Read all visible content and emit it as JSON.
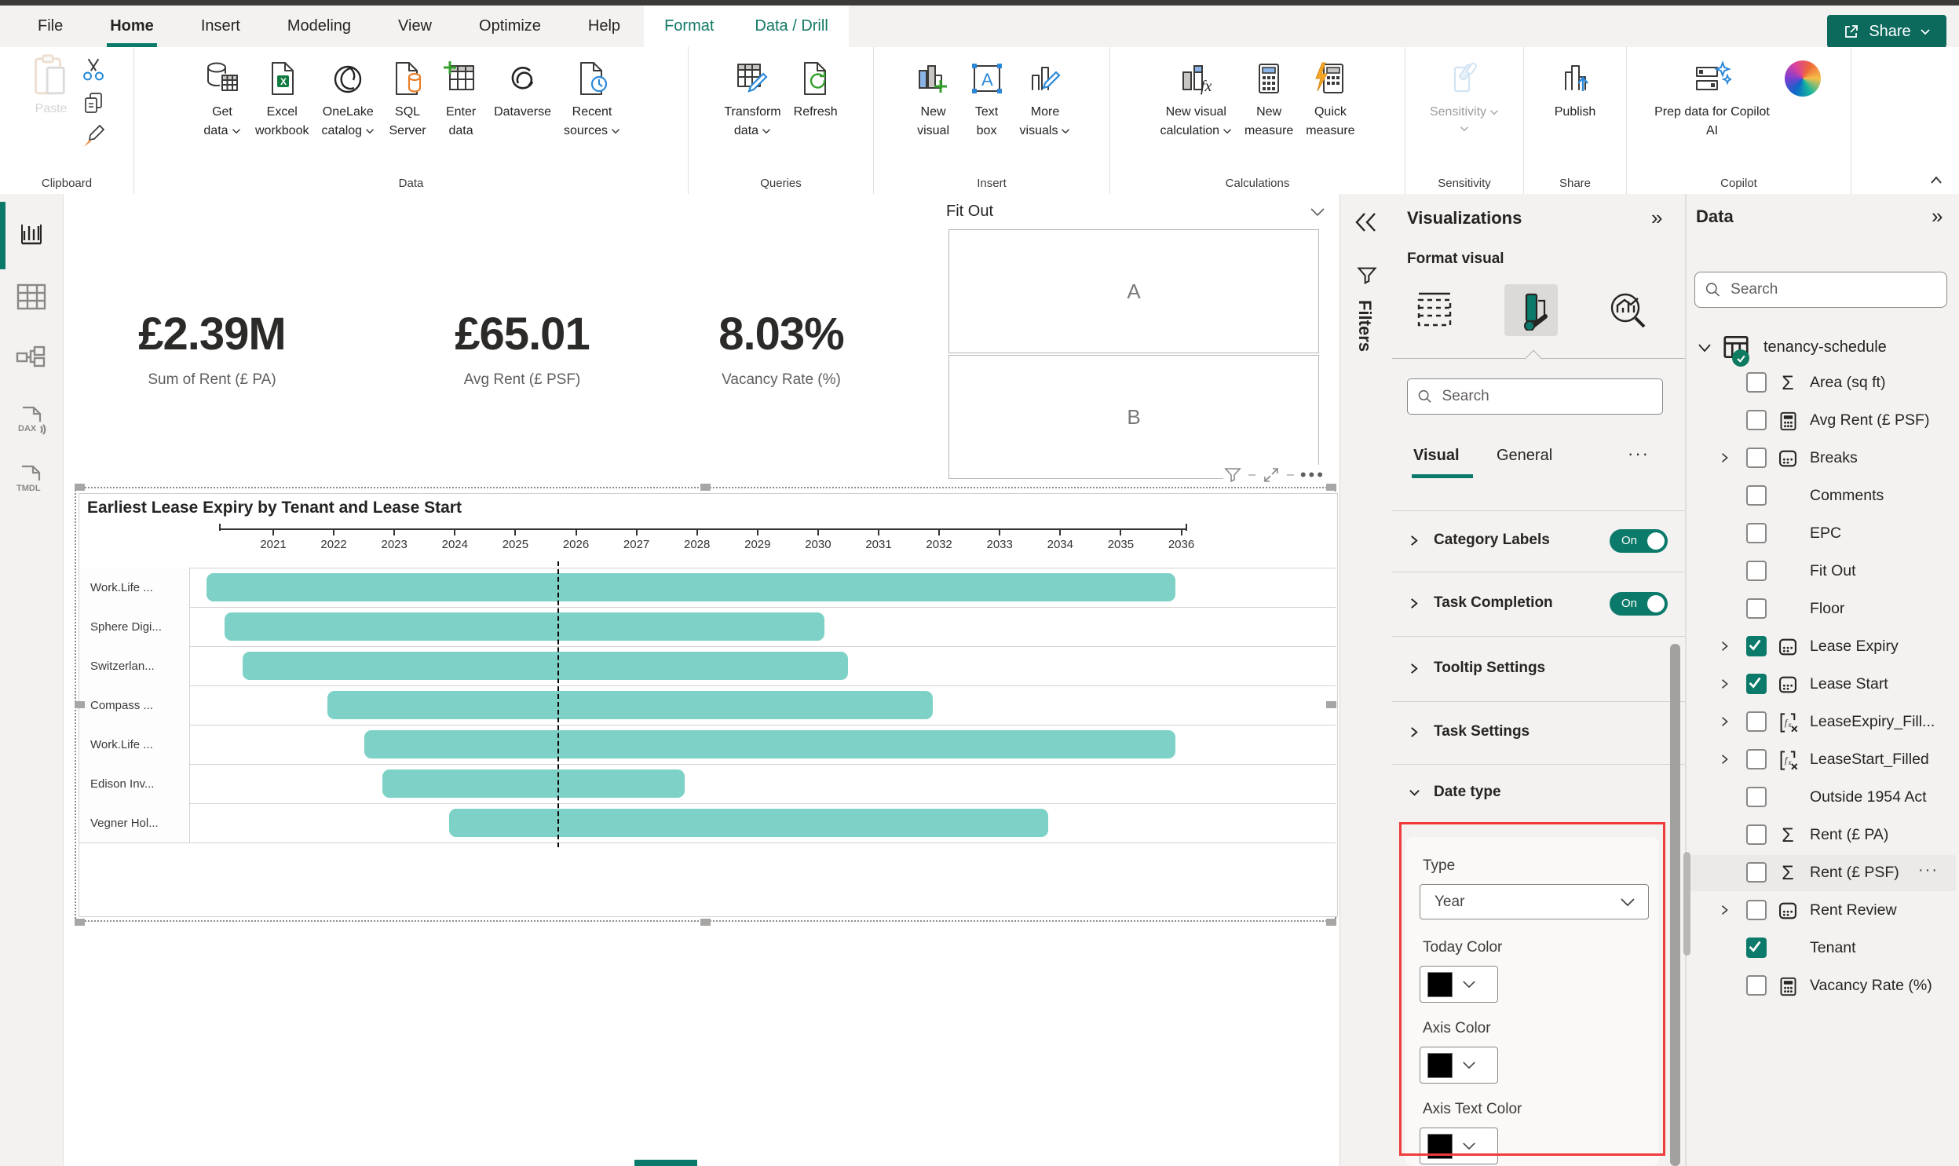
{
  "menu": {
    "items": [
      {
        "label": "File"
      },
      {
        "label": "Home",
        "active": true
      },
      {
        "label": "Insert"
      },
      {
        "label": "Modeling"
      },
      {
        "label": "View"
      },
      {
        "label": "Optimize"
      },
      {
        "label": "Help"
      }
    ],
    "contextual_tabs": [
      {
        "label": "Format"
      },
      {
        "label": "Data / Drill"
      }
    ],
    "share_label": "Share"
  },
  "ribbon": {
    "groups": [
      {
        "label": "Clipboard",
        "buttons": [
          {
            "l1": "Paste",
            "l2": "",
            "icon": "paste",
            "disabled": true
          }
        ]
      },
      {
        "label": "Data",
        "buttons": [
          {
            "l1": "Get",
            "l2": "data",
            "icon": "getdata",
            "dd": true
          },
          {
            "l1": "Excel",
            "l2": "workbook",
            "icon": "excel"
          },
          {
            "l1": "OneLake",
            "l2": "catalog",
            "icon": "onelake",
            "dd": true
          },
          {
            "l1": "SQL",
            "l2": "Server",
            "icon": "sql"
          },
          {
            "l1": "Enter",
            "l2": "data",
            "icon": "enterdata"
          },
          {
            "l1": "Dataverse",
            "l2": "",
            "icon": "dataverse"
          },
          {
            "l1": "Recent",
            "l2": "sources",
            "icon": "recent",
            "dd": true
          }
        ]
      },
      {
        "label": "Queries",
        "buttons": [
          {
            "l1": "Transform",
            "l2": "data",
            "icon": "transform",
            "dd": true
          },
          {
            "l1": "Refresh",
            "l2": "",
            "icon": "refresh"
          }
        ]
      },
      {
        "label": "Insert",
        "buttons": [
          {
            "l1": "New",
            "l2": "visual",
            "icon": "newvisual"
          },
          {
            "l1": "Text",
            "l2": "box",
            "icon": "textbox"
          },
          {
            "l1": "More",
            "l2": "visuals",
            "icon": "morevisuals",
            "dd": true
          }
        ]
      },
      {
        "label": "Calculations",
        "buttons": [
          {
            "l1": "New visual",
            "l2": "calculation",
            "icon": "nvcalc",
            "dd": true
          },
          {
            "l1": "New",
            "l2": "measure",
            "icon": "newmeasure"
          },
          {
            "l1": "Quick",
            "l2": "measure",
            "icon": "quickmeasure"
          }
        ]
      },
      {
        "label": "Sensitivity",
        "buttons": [
          {
            "l1": "Sensitivity",
            "l2": "",
            "icon": "sensitivity",
            "disabled": true,
            "dd": true
          }
        ]
      },
      {
        "label": "Share",
        "buttons": [
          {
            "l1": "Publish",
            "l2": "",
            "icon": "publish"
          }
        ]
      },
      {
        "label": "Copilot",
        "buttons": [
          {
            "l1": "Prep data for Copilot",
            "l2": "AI",
            "icon": "prepdata"
          },
          {
            "l1": "",
            "l2": "",
            "icon": "copilotlogo",
            "icon_only": true
          }
        ]
      }
    ]
  },
  "left_rail": {
    "items": [
      {
        "name": "report-view",
        "active": true
      },
      {
        "name": "table-view"
      },
      {
        "name": "model-view"
      },
      {
        "name": "dax-query-view"
      },
      {
        "name": "tmdl-view"
      }
    ]
  },
  "canvas": {
    "kpis": [
      {
        "value": "£2.39M",
        "label": "Sum of Rent (£ PA)"
      },
      {
        "value": "£65.01",
        "label": "Avg Rent (£ PSF)"
      },
      {
        "value": "8.03%",
        "label": "Vacancy Rate (%)"
      }
    ],
    "fit_out": {
      "title": "Fit Out",
      "options": [
        "A",
        "B"
      ]
    }
  },
  "chart_data": {
    "type": "gantt",
    "title": "Earliest Lease Expiry by Tenant and Lease Start",
    "categories": [
      "Work.Life ...",
      "Sphere Digi...",
      "Switzerlan...",
      "Compass ...",
      "Work.Life ...",
      "Edison Inv...",
      "Vegner Hol..."
    ],
    "bars": [
      {
        "start": 2019.9,
        "end": 2035.9
      },
      {
        "start": 2020.2,
        "end": 2030.1
      },
      {
        "start": 2020.5,
        "end": 2030.5
      },
      {
        "start": 2021.9,
        "end": 2031.9
      },
      {
        "start": 2022.5,
        "end": 2035.9
      },
      {
        "start": 2022.8,
        "end": 2027.8
      },
      {
        "start": 2023.9,
        "end": 2033.8
      }
    ],
    "x_ticks": [
      2021,
      2022,
      2023,
      2024,
      2025,
      2026,
      2027,
      2028,
      2029,
      2030,
      2031,
      2032,
      2033,
      2034,
      2035,
      2036
    ],
    "x_range": [
      2020.1,
      2036.1
    ],
    "today": 2025.7,
    "bar_color": "#7dd1c6",
    "axis_color": "#333333",
    "today_line_color": "#000000",
    "legend": "none",
    "grid": "horizontal"
  },
  "filters_rail": {
    "label": "Filters"
  },
  "visualizations": {
    "title": "Visualizations",
    "subtitle": "Format visual",
    "search_placeholder": "Search",
    "tabs": [
      {
        "label": "Visual",
        "active": true
      },
      {
        "label": "General"
      }
    ],
    "more_tabs": "···",
    "sections": [
      {
        "label": "Category Labels",
        "toggle": "On"
      },
      {
        "label": "Task Completion",
        "toggle": "On"
      },
      {
        "label": "Tooltip Settings"
      },
      {
        "label": "Task Settings"
      },
      {
        "label": "Date type",
        "expanded": true
      }
    ],
    "date_type": {
      "type_label": "Type",
      "type_value": "Year",
      "today_color_label": "Today Color",
      "axis_color_label": "Axis Color",
      "axis_text_color_label": "Axis Text Color",
      "swatch_color": "#000000"
    },
    "highlight_color": "#ef3b3b"
  },
  "data_panel": {
    "title": "Data",
    "search_placeholder": "Search",
    "table_name": "tenancy-schedule",
    "fields": [
      {
        "name": "Area (sq ft)",
        "icon": "sigma"
      },
      {
        "name": "Avg Rent (£ PSF)",
        "icon": "calc"
      },
      {
        "name": "Breaks",
        "icon": "date",
        "expandable": true
      },
      {
        "name": "Comments"
      },
      {
        "name": "EPC"
      },
      {
        "name": "Fit Out"
      },
      {
        "name": "Floor"
      },
      {
        "name": "Lease Expiry",
        "icon": "date",
        "expandable": true,
        "checked": true
      },
      {
        "name": "Lease Start",
        "icon": "date",
        "expandable": true,
        "checked": true
      },
      {
        "name": "LeaseExpiry_Fill...",
        "icon": "fx",
        "expandable": true
      },
      {
        "name": "LeaseStart_Filled",
        "icon": "fx",
        "expandable": true
      },
      {
        "name": "Outside 1954 Act"
      },
      {
        "name": "Rent (£ PA)",
        "icon": "sigma"
      },
      {
        "name": "Rent (£ PSF)",
        "icon": "sigma",
        "hovered": true,
        "menu": "···"
      },
      {
        "name": "Rent Review",
        "icon": "date",
        "expandable": true
      },
      {
        "name": "Tenant",
        "checked": true
      },
      {
        "name": "Vacancy Rate (%)",
        "icon": "calc"
      }
    ]
  },
  "colors": {
    "accent_text": "#117865",
    "toggle_on": "#0c7a6b",
    "share_button": "#0c6a5d",
    "gantt_bar": "#7dd1c6",
    "highlight": "#ef3b3b"
  }
}
